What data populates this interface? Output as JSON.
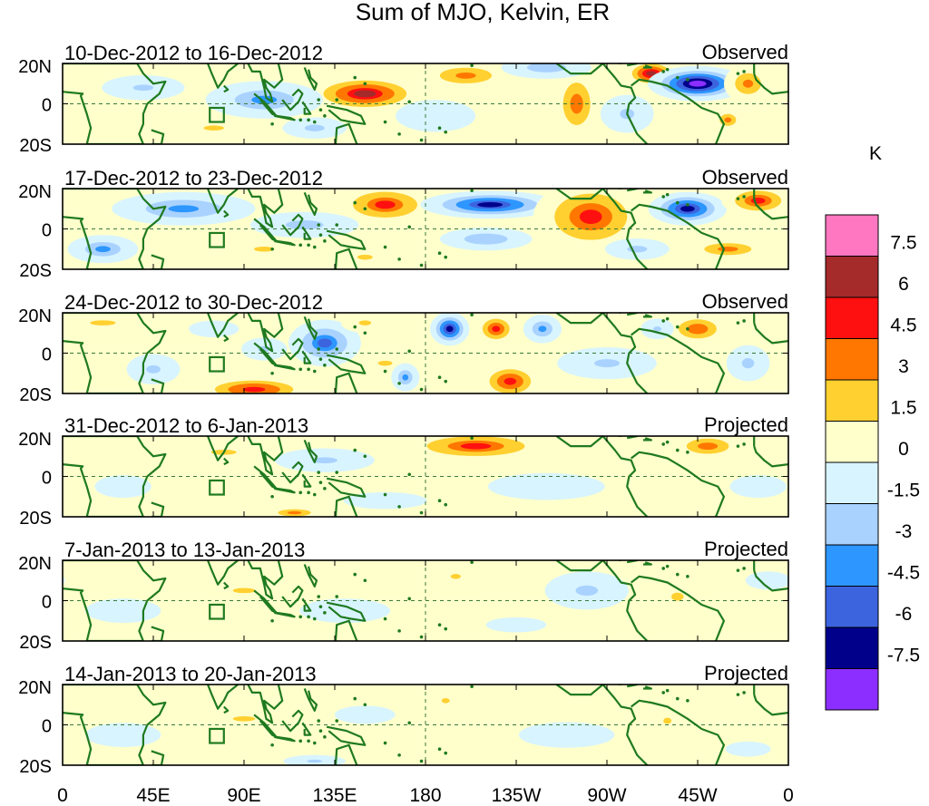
{
  "chart_data": {
    "type": "heatmap",
    "title": "Sum of MJO, Kelvin, ER",
    "quantity": "Temperature anomaly",
    "x_ticks": [
      "0",
      "45E",
      "90E",
      "135E",
      "180",
      "135W",
      "90W",
      "45W",
      "0"
    ],
    "x_range_deg": [
      0,
      360
    ],
    "y_ticks": [
      "20N",
      "0",
      "20S"
    ],
    "y_range_deg": [
      -20,
      20
    ],
    "colorbar": {
      "unit": "K",
      "labels": [
        "7.5",
        "6",
        "4.5",
        "3",
        "1.5",
        "0",
        "-1.5",
        "-3",
        "-4.5",
        "-6",
        "-7.5"
      ],
      "colors": [
        "#ff77c1",
        "#a52a2a",
        "#ff1010",
        "#ff7700",
        "#ffd030",
        "#ffffcc",
        "#d8f4ff",
        "#a9d2ff",
        "#2d96ff",
        "#3c64de",
        "#00008b",
        "#8c2eff"
      ]
    },
    "panels": [
      {
        "label": "10-Dec-2012 to 16-Dec-2012",
        "status": "Observed",
        "features": [
          {
            "lon": 150,
            "lat": 5,
            "sx": 22,
            "sy": 7,
            "v": 6.2
          },
          {
            "lon": 200,
            "lat": 14,
            "sx": 20,
            "sy": 6,
            "v": 3.5
          },
          {
            "lon": 255,
            "lat": 0,
            "sx": 9,
            "sy": 14,
            "v": 4.2
          },
          {
            "lon": 292,
            "lat": 15,
            "sx": 10,
            "sy": 5,
            "v": 6.5
          },
          {
            "lon": 315,
            "lat": 10,
            "sx": 17,
            "sy": 6,
            "v": -8.3
          },
          {
            "lon": 340,
            "lat": 10,
            "sx": 10,
            "sy": 8,
            "v": 3.5
          },
          {
            "lon": 330,
            "lat": -8,
            "sx": 7,
            "sy": 5,
            "v": 3.2
          },
          {
            "lon": 100,
            "lat": 2,
            "sx": 25,
            "sy": 8,
            "v": -3.2
          },
          {
            "lon": 40,
            "lat": 8,
            "sx": 20,
            "sy": 6,
            "v": -2.2
          },
          {
            "lon": 125,
            "lat": -12,
            "sx": 15,
            "sy": 5,
            "v": -2.4
          },
          {
            "lon": 240,
            "lat": 18,
            "sx": 20,
            "sy": 5,
            "v": -2.8
          },
          {
            "lon": 280,
            "lat": -5,
            "sx": 14,
            "sy": 10,
            "v": -1.8
          },
          {
            "lon": 185,
            "lat": -6,
            "sx": 25,
            "sy": 10,
            "v": -1.3
          },
          {
            "lon": 75,
            "lat": -12,
            "sx": 20,
            "sy": 5,
            "v": 1.8
          }
        ]
      },
      {
        "label": "17-Dec-2012 to 23-Dec-2012",
        "status": "Observed",
        "features": [
          {
            "lon": 160,
            "lat": 12,
            "sx": 20,
            "sy": 8,
            "v": 4.6
          },
          {
            "lon": 212,
            "lat": 12,
            "sx": 25,
            "sy": 5,
            "v": -6.3
          },
          {
            "lon": 262,
            "lat": 6,
            "sx": 22,
            "sy": 14,
            "v": 4.8
          },
          {
            "lon": 310,
            "lat": 10,
            "sx": 14,
            "sy": 6,
            "v": -6.5
          },
          {
            "lon": 345,
            "lat": 14,
            "sx": 14,
            "sy": 6,
            "v": 4.8
          },
          {
            "lon": 60,
            "lat": 10,
            "sx": 30,
            "sy": 7,
            "v": -3.4
          },
          {
            "lon": 120,
            "lat": 2,
            "sx": 25,
            "sy": 6,
            "v": -2.5
          },
          {
            "lon": 20,
            "lat": -10,
            "sx": 15,
            "sy": 6,
            "v": -3.2
          },
          {
            "lon": 210,
            "lat": -5,
            "sx": 20,
            "sy": 5,
            "v": -3.0
          },
          {
            "lon": 330,
            "lat": -10,
            "sx": 20,
            "sy": 5,
            "v": 3.2
          },
          {
            "lon": 100,
            "lat": -10,
            "sx": 20,
            "sy": 5,
            "v": 2.0
          },
          {
            "lon": 285,
            "lat": -10,
            "sx": 15,
            "sy": 5,
            "v": -2.4
          },
          {
            "lon": 150,
            "lat": -14,
            "sx": 15,
            "sy": 5,
            "v": 1.8
          }
        ]
      },
      {
        "label": "24-Dec-2012 to 30-Dec-2012",
        "status": "Observed",
        "features": [
          {
            "lon": 192,
            "lat": 12,
            "sx": 7,
            "sy": 6,
            "v": -6.6
          },
          {
            "lon": 215,
            "lat": 12,
            "sx": 8,
            "sy": 6,
            "v": 5.0
          },
          {
            "lon": 238,
            "lat": 12,
            "sx": 8,
            "sy": 6,
            "v": -3.4
          },
          {
            "lon": 222,
            "lat": -14,
            "sx": 12,
            "sy": 7,
            "v": 5.2
          },
          {
            "lon": 95,
            "lat": -18,
            "sx": 22,
            "sy": 5,
            "v": 5.5
          },
          {
            "lon": 130,
            "lat": 5,
            "sx": 14,
            "sy": 9,
            "v": -4.6
          },
          {
            "lon": 150,
            "lat": 15,
            "sx": 12,
            "sy": 5,
            "v": 2.0
          },
          {
            "lon": 160,
            "lat": -5,
            "sx": 14,
            "sy": 5,
            "v": 1.6
          },
          {
            "lon": 170,
            "lat": -12,
            "sx": 6,
            "sy": 6,
            "v": -3.2
          },
          {
            "lon": 315,
            "lat": 12,
            "sx": 12,
            "sy": 6,
            "v": 4.5
          },
          {
            "lon": 295,
            "lat": 12,
            "sx": 8,
            "sy": 5,
            "v": -2.2
          },
          {
            "lon": 340,
            "lat": -5,
            "sx": 12,
            "sy": 10,
            "v": -1.6
          },
          {
            "lon": 20,
            "lat": 15,
            "sx": 25,
            "sy": 5,
            "v": 2.0
          },
          {
            "lon": 45,
            "lat": -8,
            "sx": 14,
            "sy": 8,
            "v": -1.8
          },
          {
            "lon": 270,
            "lat": -5,
            "sx": 25,
            "sy": 8,
            "v": -2.0
          },
          {
            "lon": 100,
            "lat": 2,
            "sx": 12,
            "sy": 6,
            "v": -1.8
          },
          {
            "lon": 75,
            "lat": 12,
            "sx": 15,
            "sy": 5,
            "v": -1.4
          }
        ]
      },
      {
        "label": "31-Dec-2012 to 6-Jan-2013",
        "status": "Projected",
        "features": [
          {
            "lon": 205,
            "lat": 15,
            "sx": 30,
            "sy": 6,
            "v": 4.7
          },
          {
            "lon": 320,
            "lat": 15,
            "sx": 14,
            "sy": 5,
            "v": 4.2
          },
          {
            "lon": 130,
            "lat": 8,
            "sx": 25,
            "sy": 6,
            "v": -2.0
          },
          {
            "lon": 240,
            "lat": -5,
            "sx": 35,
            "sy": 8,
            "v": -1.4
          },
          {
            "lon": 115,
            "lat": -18,
            "sx": 14,
            "sy": 3,
            "v": 3.2
          },
          {
            "lon": 80,
            "lat": 12,
            "sx": 25,
            "sy": 5,
            "v": 1.6
          },
          {
            "lon": 160,
            "lat": -12,
            "sx": 25,
            "sy": 5,
            "v": -1.4
          },
          {
            "lon": 30,
            "lat": -5,
            "sx": 20,
            "sy": 8,
            "v": -1.1
          },
          {
            "lon": 300,
            "lat": 0,
            "sx": 14,
            "sy": 8,
            "v": 1.5
          },
          {
            "lon": 345,
            "lat": -5,
            "sx": 20,
            "sy": 8,
            "v": -1.1
          }
        ]
      },
      {
        "label": "7-Jan-2013 to 13-Jan-2013",
        "status": "Projected",
        "features": [
          {
            "lon": 90,
            "lat": 5,
            "sx": 22,
            "sy": 5,
            "v": 2.0
          },
          {
            "lon": 195,
            "lat": 12,
            "sx": 10,
            "sy": 5,
            "v": 1.6
          },
          {
            "lon": 305,
            "lat": 2,
            "sx": 12,
            "sy": 8,
            "v": 2.2
          },
          {
            "lon": 260,
            "lat": 5,
            "sx": 22,
            "sy": 10,
            "v": -1.8
          },
          {
            "lon": 140,
            "lat": -5,
            "sx": 30,
            "sy": 8,
            "v": -1.2
          },
          {
            "lon": 30,
            "lat": -5,
            "sx": 25,
            "sy": 8,
            "v": -1.2
          },
          {
            "lon": 350,
            "lat": 10,
            "sx": 15,
            "sy": 6,
            "v": -1.2
          },
          {
            "lon": 225,
            "lat": -12,
            "sx": 20,
            "sy": 5,
            "v": -1.2
          }
        ]
      },
      {
        "label": "14-Jan-2013 to 20-Jan-2013",
        "status": "Projected",
        "features": [
          {
            "lon": 90,
            "lat": 3,
            "sx": 22,
            "sy": 5,
            "v": 1.9
          },
          {
            "lon": 190,
            "lat": 12,
            "sx": 8,
            "sy": 5,
            "v": 2.2
          },
          {
            "lon": 300,
            "lat": 2,
            "sx": 8,
            "sy": 6,
            "v": 1.7
          },
          {
            "lon": 125,
            "lat": -18,
            "sx": 15,
            "sy": 3,
            "v": -2.2
          },
          {
            "lon": 250,
            "lat": -5,
            "sx": 30,
            "sy": 8,
            "v": -1.3
          },
          {
            "lon": 30,
            "lat": -5,
            "sx": 25,
            "sy": 8,
            "v": -1.2
          },
          {
            "lon": 150,
            "lat": 5,
            "sx": 20,
            "sy": 6,
            "v": -1.2
          },
          {
            "lon": 340,
            "lat": -12,
            "sx": 15,
            "sy": 5,
            "v": -1.2
          }
        ]
      }
    ]
  }
}
